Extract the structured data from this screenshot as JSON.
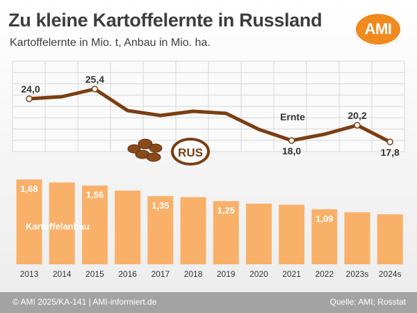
{
  "header": {
    "title": "Zu kleine Kartoffelernte in Russland",
    "subtitle": "Kartoffelernte in Mio. t, Anbau in Mio. ha.",
    "logo_text": "AMI"
  },
  "footer": {
    "left": "© AMI 2025/KA-141 | AMI-informiert.de",
    "right": "Quelle: AMI; Rosstat"
  },
  "chart_data": [
    {
      "type": "line",
      "series": [
        {
          "name": "Ernte",
          "values": [
            24.0,
            24.3,
            25.4,
            22.3,
            21.6,
            22.2,
            21.9,
            19.6,
            18.0,
            18.9,
            20.2,
            17.8
          ]
        }
      ],
      "categories": [
        "2013",
        "2014",
        "2015",
        "2016",
        "2017",
        "2018",
        "2019",
        "2020",
        "2021",
        "2022",
        "2023s",
        "2024s"
      ],
      "data_labels": [
        {
          "index": 0,
          "text": "24,0"
        },
        {
          "index": 2,
          "text": "25,4"
        },
        {
          "index": 8,
          "text": "18,0"
        },
        {
          "index": 10,
          "text": "20,2"
        },
        {
          "index": 11,
          "text": "17,8"
        }
      ],
      "series_label": "Ernte",
      "badge_text": "RUS",
      "grid": true,
      "ylim": [
        15,
        28
      ]
    },
    {
      "type": "bar",
      "series": [
        {
          "name": "Kartoffelanbau",
          "values": [
            1.68,
            1.62,
            1.56,
            1.46,
            1.35,
            1.33,
            1.25,
            1.2,
            1.18,
            1.09,
            1.03,
            0.99
          ]
        }
      ],
      "categories": [
        "2013",
        "2014",
        "2015",
        "2016",
        "2017",
        "2018",
        "2019",
        "2020",
        "2021",
        "2022",
        "2023s",
        "2024s"
      ],
      "data_labels": [
        {
          "index": 0,
          "text": "1,68"
        },
        {
          "index": 2,
          "text": "1,56"
        },
        {
          "index": 4,
          "text": "1,35"
        },
        {
          "index": 6,
          "text": "1,25"
        },
        {
          "index": 9,
          "text": "1,09"
        }
      ],
      "series_label": "Kartoffelanbau",
      "ylim": [
        0,
        1.8
      ]
    }
  ],
  "colors": {
    "line": "#7a3e12",
    "bar": "#f9b069",
    "bar_label": "#ffffff",
    "grid": "#d6d6d6",
    "accent": "#f08a1e",
    "footer": "#a3a3a3"
  }
}
